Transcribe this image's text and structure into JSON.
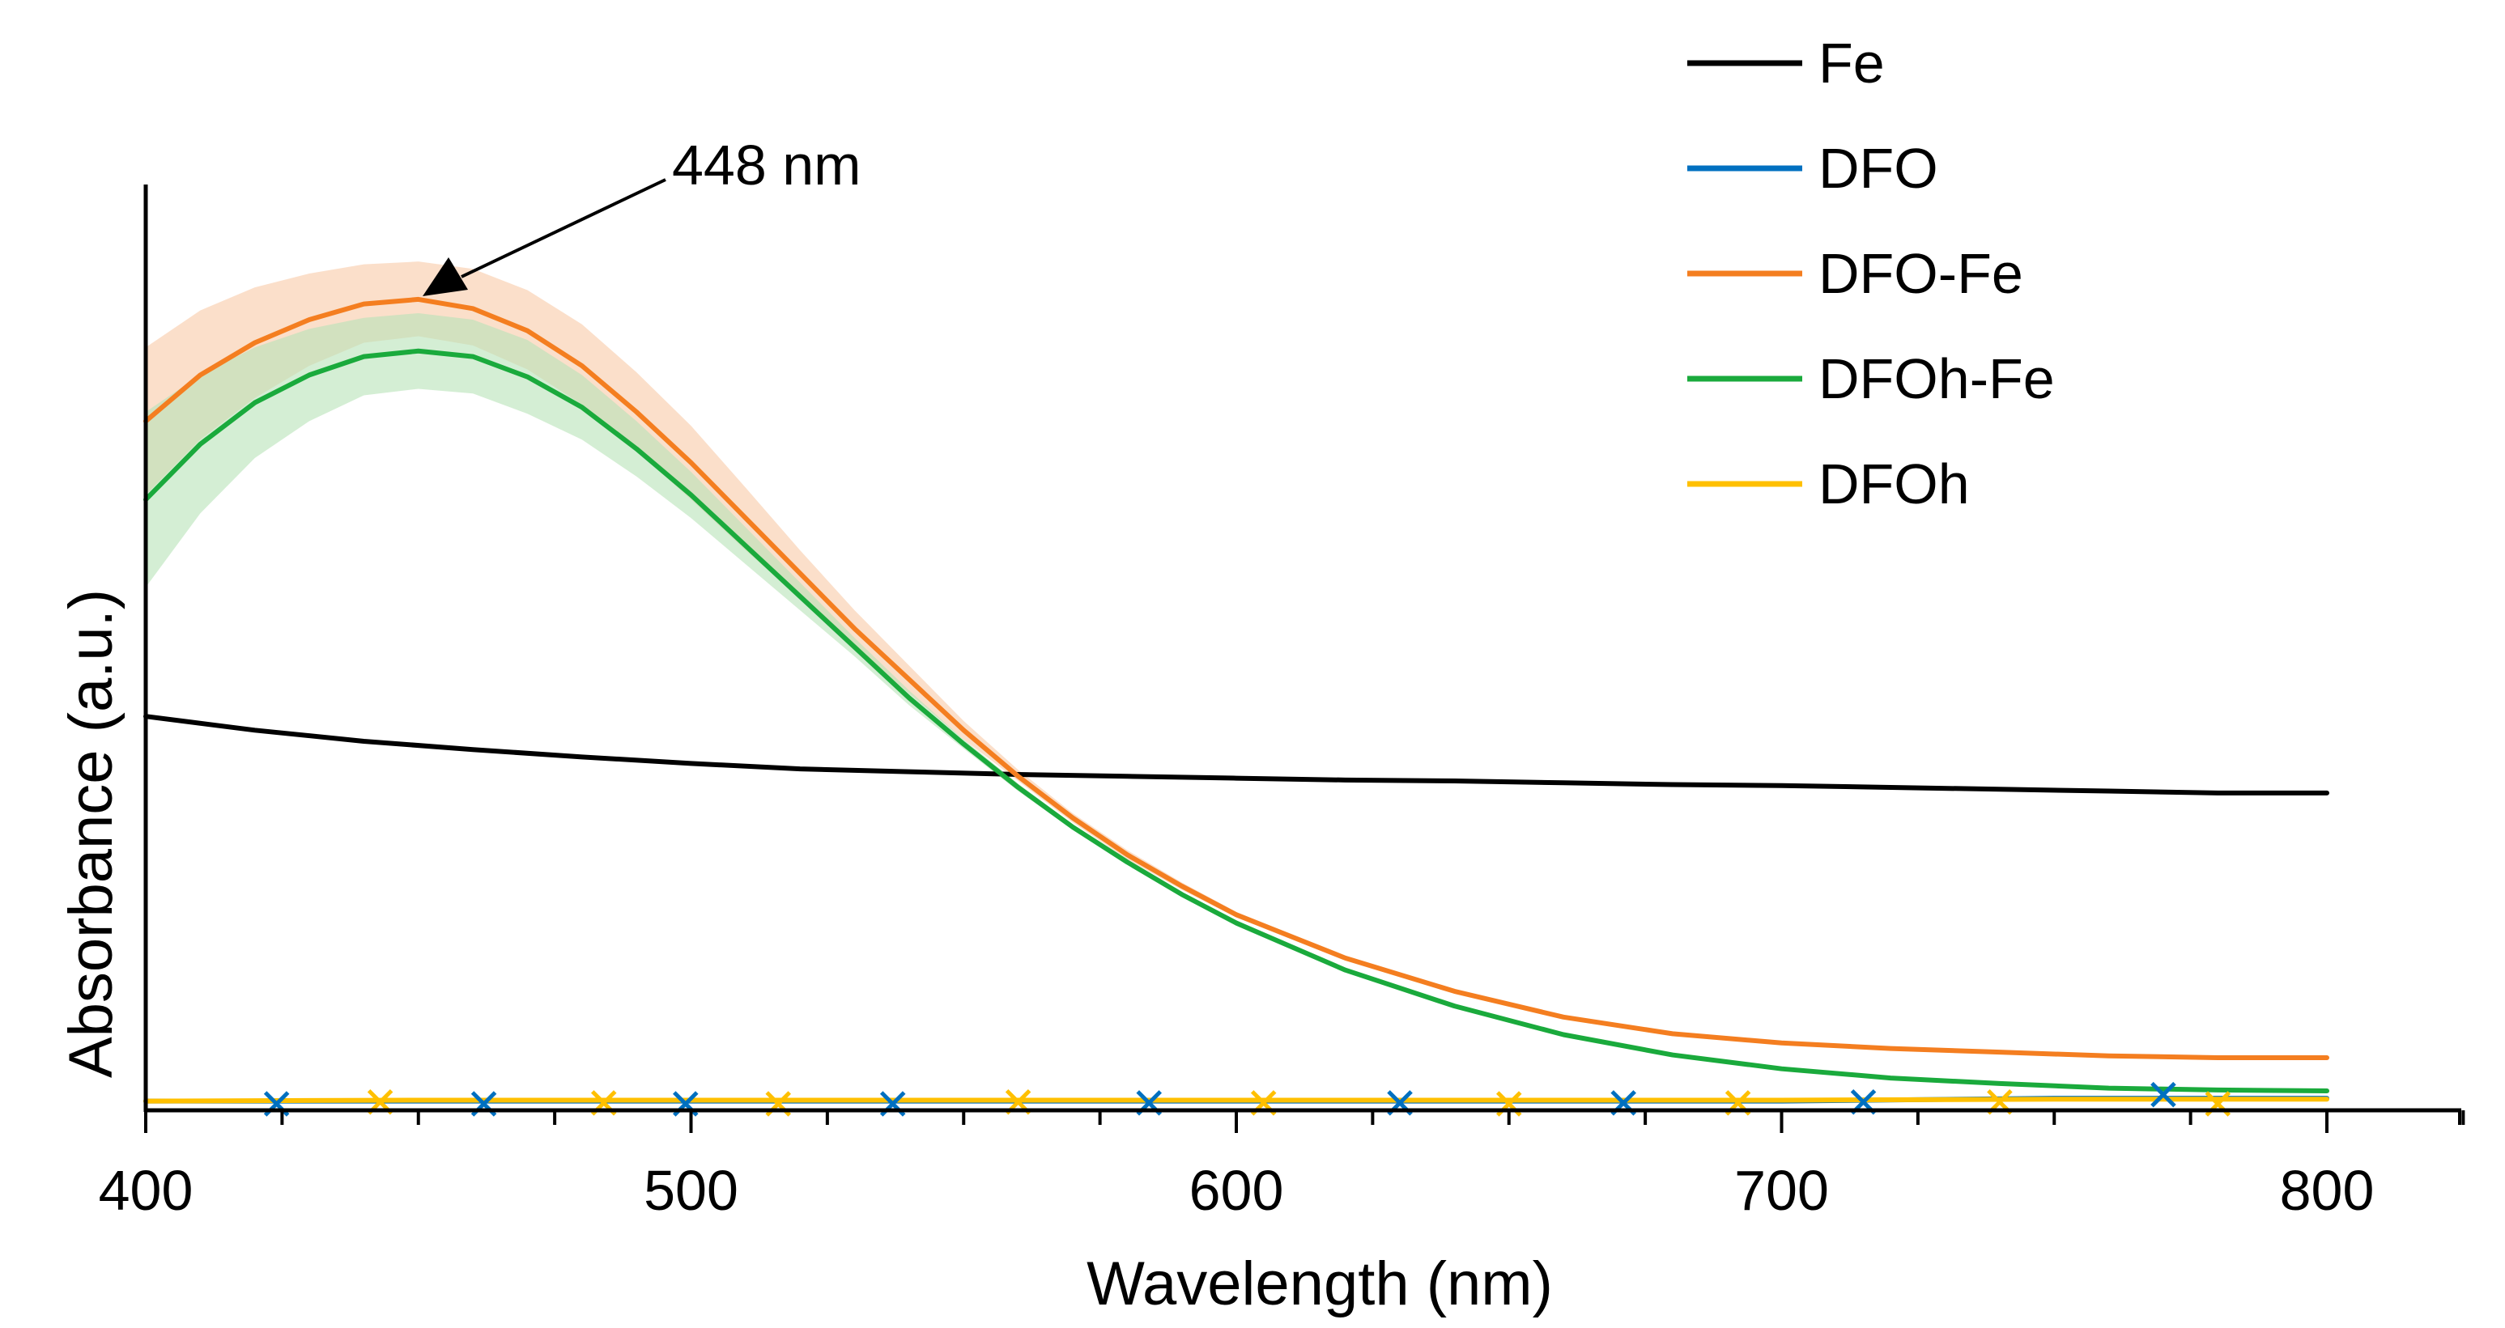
{
  "chart_data": {
    "type": "line",
    "title": "",
    "xlabel": "Wavelength (nm)",
    "ylabel": "Absorbance (a.u.)",
    "xlim": [
      400,
      830
    ],
    "ylim": [
      0,
      1.1
    ],
    "x_ticks": [
      400,
      500,
      600,
      700,
      800
    ],
    "x_tick_labels": [
      "400",
      "500",
      "600",
      "700",
      "800"
    ],
    "y_ticks_shown": false,
    "grid": false,
    "legend_position": "top-right",
    "annotation": {
      "text": "448 nm",
      "x": 448,
      "y": 0.9
    },
    "series": [
      {
        "name": "Fe",
        "color": "#000000",
        "x": [
          400,
          420,
          440,
          460,
          480,
          500,
          520,
          540,
          560,
          580,
          600,
          620,
          640,
          660,
          680,
          700,
          720,
          740,
          760,
          780,
          800
        ],
        "y": [
          0.42,
          0.405,
          0.393,
          0.384,
          0.376,
          0.369,
          0.363,
          0.36,
          0.357,
          0.355,
          0.353,
          0.351,
          0.35,
          0.348,
          0.346,
          0.345,
          0.343,
          0.341,
          0.339,
          0.337,
          0.337
        ]
      },
      {
        "name": "DFO",
        "color": "#0070c0",
        "x": [
          400,
          450,
          500,
          550,
          600,
          650,
          700,
          750,
          800
        ],
        "y": [
          0.003,
          0.003,
          0.003,
          0.003,
          0.003,
          0.003,
          0.003,
          0.006,
          0.006
        ],
        "markers_x": [
          424,
          462,
          499,
          537,
          584,
          630,
          671,
          715,
          770
        ],
        "markers_y": [
          0.0,
          0.0,
          0.0,
          0.0,
          0.001,
          0.001,
          0.001,
          0.002,
          0.01
        ],
        "marker": "x"
      },
      {
        "name": "DFO-Fe",
        "color": "#f47e20",
        "band_color": "#f9c9a6",
        "x": [
          400,
          410,
          420,
          430,
          440,
          450,
          460,
          470,
          480,
          490,
          500,
          510,
          520,
          530,
          540,
          550,
          560,
          570,
          580,
          590,
          600,
          620,
          640,
          660,
          680,
          700,
          720,
          740,
          760,
          780,
          800
        ],
        "y": [
          0.74,
          0.79,
          0.825,
          0.85,
          0.867,
          0.872,
          0.862,
          0.838,
          0.8,
          0.75,
          0.695,
          0.635,
          0.575,
          0.515,
          0.46,
          0.405,
          0.355,
          0.31,
          0.27,
          0.236,
          0.205,
          0.158,
          0.122,
          0.094,
          0.076,
          0.066,
          0.06,
          0.056,
          0.052,
          0.05,
          0.05
        ],
        "band_upper": [
          0.82,
          0.86,
          0.885,
          0.9,
          0.91,
          0.913,
          0.905,
          0.882,
          0.845,
          0.793,
          0.735,
          0.668,
          0.6,
          0.535,
          0.475,
          0.415,
          0.362,
          0.315,
          0.275,
          0.24,
          0.208,
          0.16,
          0.124,
          0.096,
          0.078,
          0.068,
          0.062,
          0.058,
          0.054,
          0.052,
          0.052
        ],
        "band_lower": [
          0.66,
          0.72,
          0.765,
          0.8,
          0.825,
          0.832,
          0.822,
          0.796,
          0.758,
          0.708,
          0.655,
          0.6,
          0.548,
          0.495,
          0.445,
          0.395,
          0.35,
          0.305,
          0.265,
          0.232,
          0.202,
          0.156,
          0.12,
          0.092,
          0.074,
          0.064,
          0.058,
          0.054,
          0.05,
          0.048,
          0.048
        ]
      },
      {
        "name": "DFOh-Fe",
        "color": "#1aaa3c",
        "band_color": "#b8e2b8",
        "x": [
          400,
          410,
          420,
          430,
          440,
          450,
          460,
          470,
          480,
          490,
          500,
          510,
          520,
          530,
          540,
          550,
          560,
          570,
          580,
          590,
          600,
          620,
          640,
          660,
          680,
          700,
          720,
          740,
          760,
          780,
          800
        ],
        "y": [
          0.655,
          0.715,
          0.76,
          0.79,
          0.81,
          0.816,
          0.81,
          0.788,
          0.755,
          0.71,
          0.66,
          0.605,
          0.55,
          0.495,
          0.44,
          0.39,
          0.343,
          0.3,
          0.262,
          0.227,
          0.196,
          0.145,
          0.106,
          0.075,
          0.053,
          0.038,
          0.028,
          0.022,
          0.017,
          0.015,
          0.014
        ],
        "band_upper": [
          0.75,
          0.79,
          0.82,
          0.84,
          0.852,
          0.857,
          0.85,
          0.828,
          0.79,
          0.74,
          0.685,
          0.625,
          0.565,
          0.505,
          0.448,
          0.395,
          0.347,
          0.303,
          0.264,
          0.229,
          0.198,
          0.147,
          0.108,
          0.077,
          0.055,
          0.04,
          0.03,
          0.024,
          0.019,
          0.017,
          0.016
        ],
        "band_lower": [
          0.56,
          0.64,
          0.7,
          0.74,
          0.768,
          0.775,
          0.77,
          0.748,
          0.72,
          0.68,
          0.635,
          0.585,
          0.535,
          0.485,
          0.432,
          0.385,
          0.339,
          0.297,
          0.26,
          0.225,
          0.194,
          0.143,
          0.104,
          0.073,
          0.051,
          0.036,
          0.026,
          0.02,
          0.015,
          0.013,
          0.012
        ]
      },
      {
        "name": "DFOh",
        "color": "#ffc000",
        "x": [
          400,
          450,
          500,
          550,
          600,
          650,
          700,
          750,
          800
        ],
        "y": [
          0.003,
          0.004,
          0.004,
          0.004,
          0.004,
          0.004,
          0.004,
          0.005,
          0.005
        ],
        "markers_x": [
          443,
          484,
          516,
          560,
          605,
          650,
          692,
          740,
          780
        ],
        "markers_y": [
          0.002,
          0.001,
          0.0,
          0.002,
          0.001,
          0.0,
          0.001,
          0.002,
          0.0
        ],
        "marker": "x"
      }
    ]
  }
}
